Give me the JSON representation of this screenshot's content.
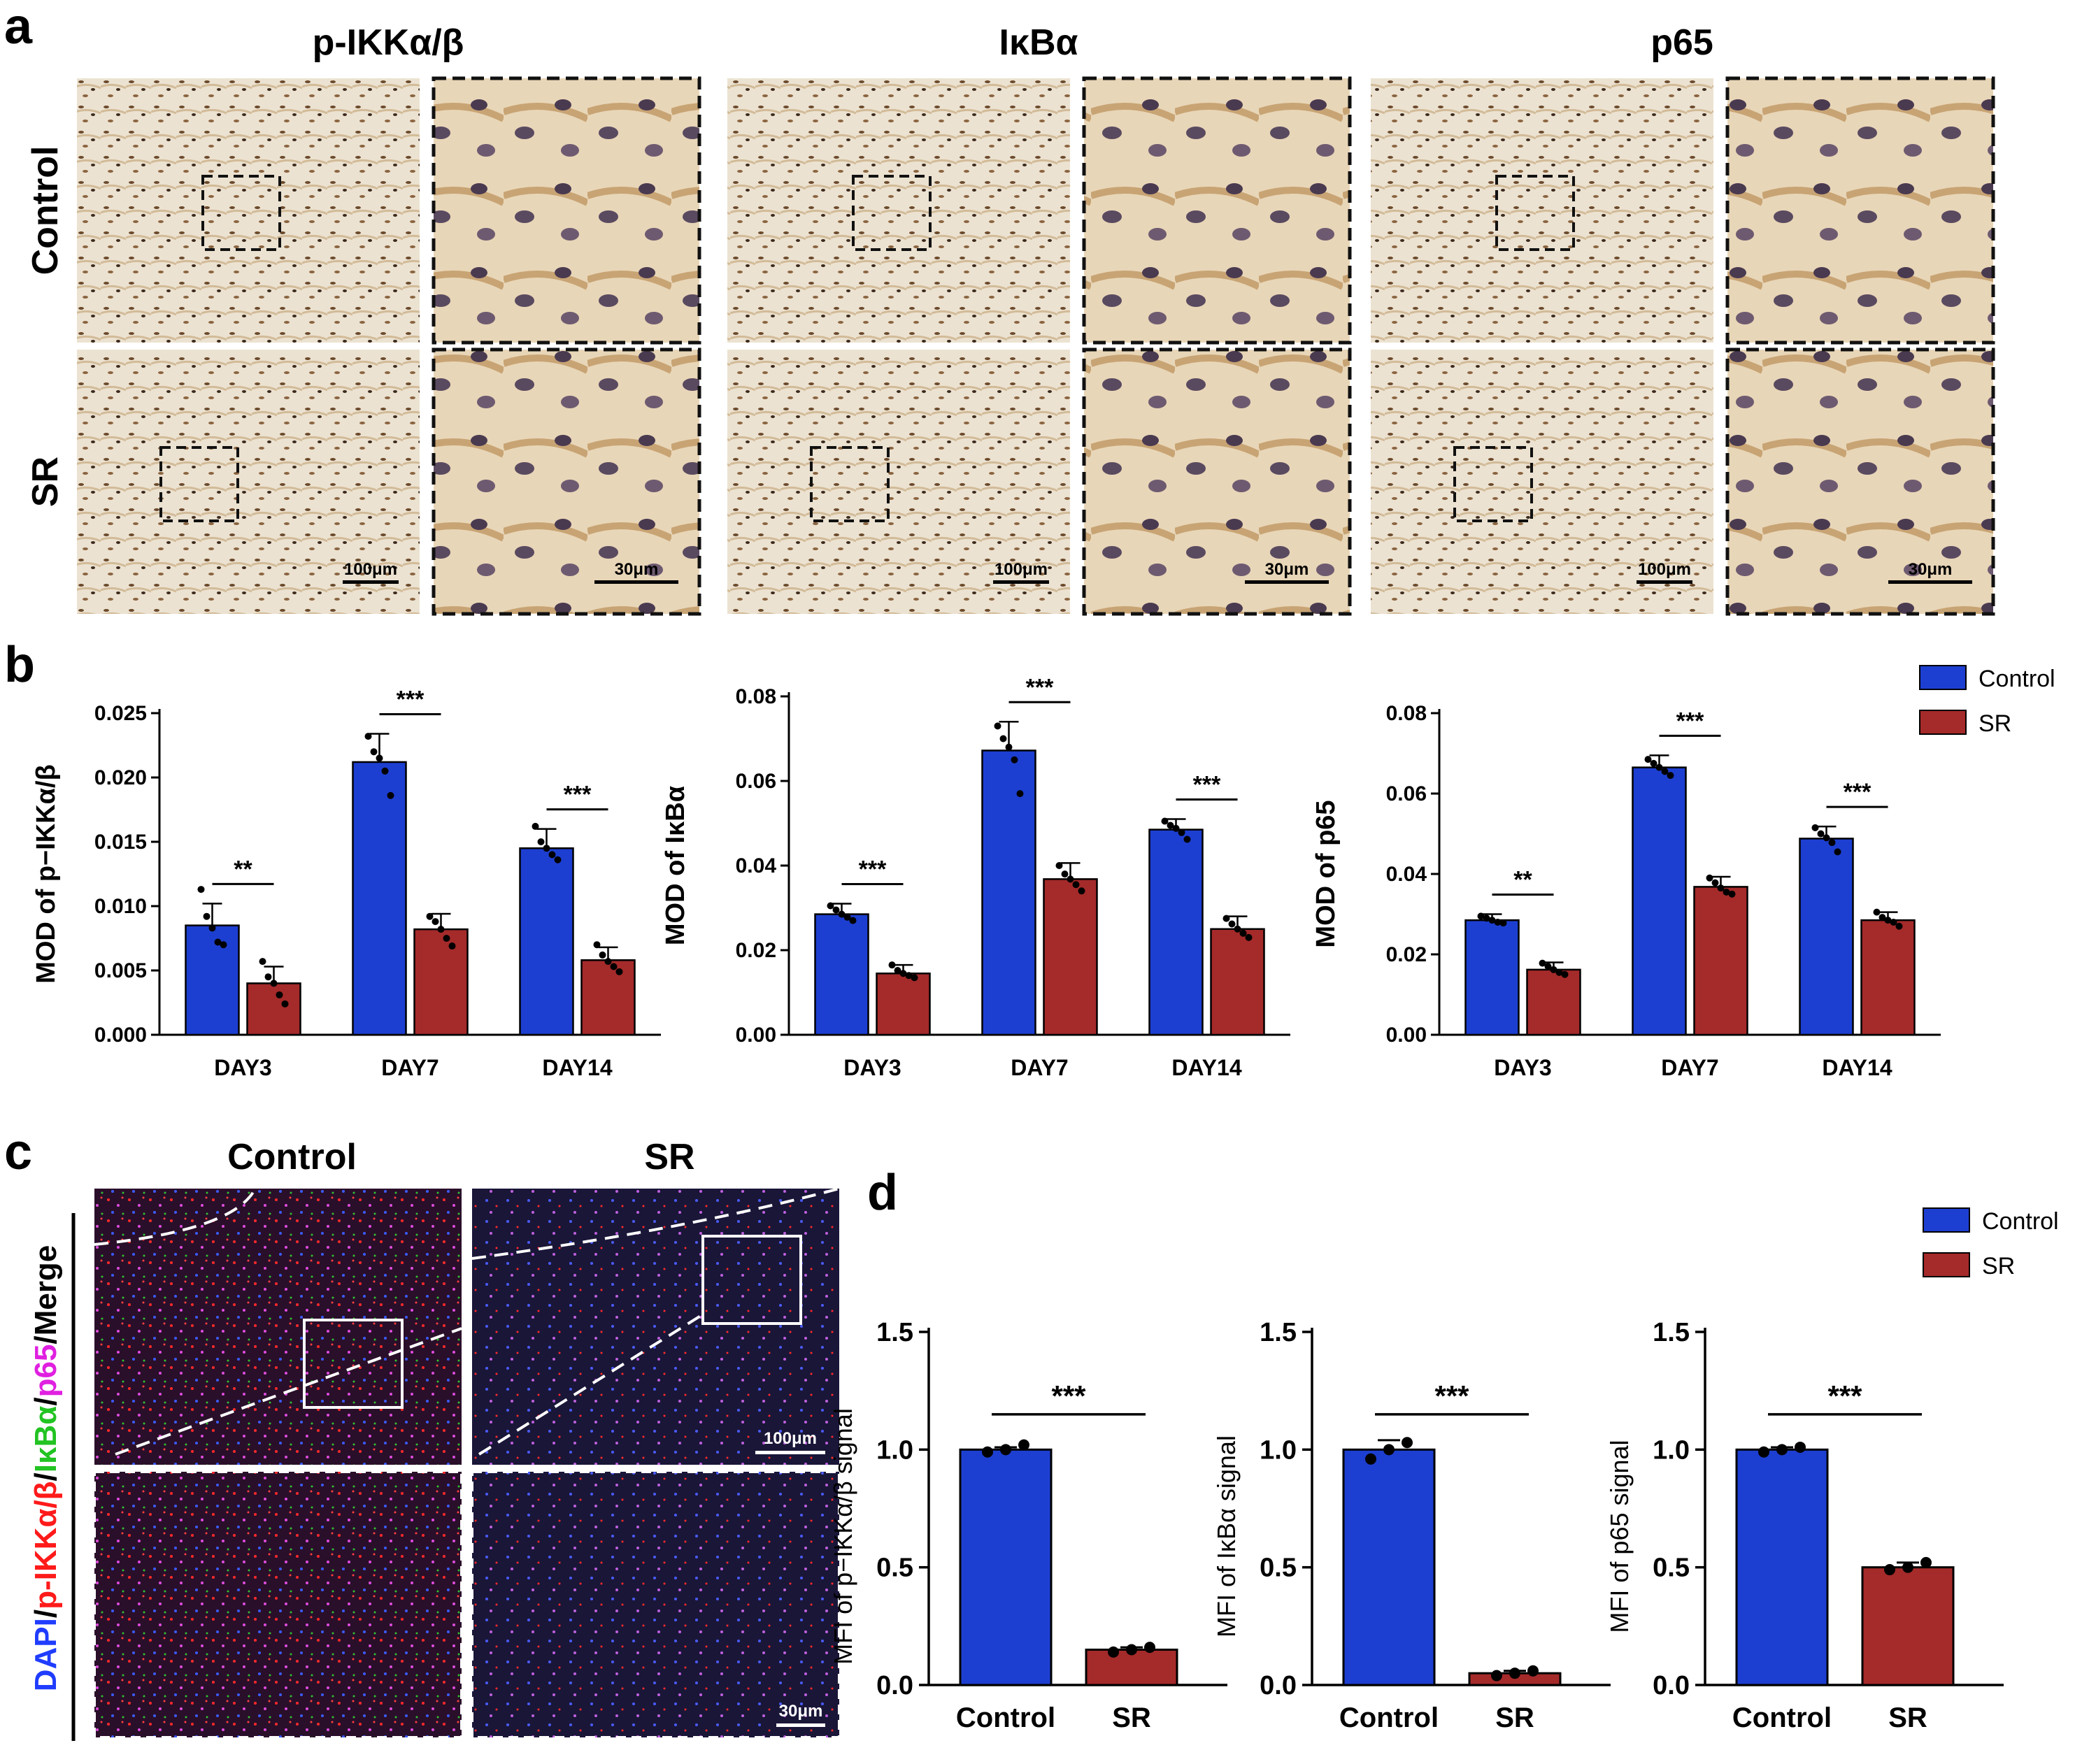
{
  "panel_a": {
    "letter": "a",
    "columns": [
      "p-IKKα/β",
      "IκBα",
      "p65"
    ],
    "rows": [
      "Control",
      "SR"
    ],
    "scale_low": "100μm",
    "scale_high": "30μm"
  },
  "panel_b_letter": "b",
  "panel_c": {
    "letter": "c",
    "cols": [
      "Control",
      "SR"
    ],
    "side_label_parts": [
      {
        "text": "DAPI",
        "color": "#1f3cff"
      },
      {
        "text": "/",
        "color": "#000000"
      },
      {
        "text": "p-IKKα/β",
        "color": "#ff1a1a"
      },
      {
        "text": "/",
        "color": "#000000"
      },
      {
        "text": "IκBα",
        "color": "#22c322"
      },
      {
        "text": "/",
        "color": "#000000"
      },
      {
        "text": "p65",
        "color": "#e020e0"
      },
      {
        "text": "/Merge",
        "color": "#000000"
      }
    ],
    "scale_low": "100μm",
    "scale_high": "30μm"
  },
  "panel_d_letter": "d",
  "legend": {
    "labels": [
      "Control",
      "SR"
    ],
    "colors": [
      "#1d3fd1",
      "#a52a2a"
    ]
  },
  "chart_data": [
    {
      "type": "bar",
      "panel": "b",
      "categories": [
        "DAY3",
        "DAY7",
        "DAY14"
      ],
      "series": [
        {
          "name": "Control",
          "values": [
            0.0085,
            0.0212,
            0.0145
          ],
          "err": [
            0.0017,
            0.0022,
            0.0015
          ]
        },
        {
          "name": "SR",
          "values": [
            0.004,
            0.0082,
            0.0058
          ],
          "err": [
            0.0013,
            0.0012,
            0.001
          ]
        }
      ],
      "points": [
        [
          [
            0.0113,
            0.0092,
            0.0083,
            0.0072,
            0.007
          ],
          [
            0.0057,
            0.0045,
            0.004,
            0.0031,
            0.0024
          ]
        ],
        [
          [
            0.0232,
            0.022,
            0.0215,
            0.0205,
            0.0186
          ],
          [
            0.0092,
            0.0088,
            0.0082,
            0.0075,
            0.0069
          ]
        ],
        [
          [
            0.0162,
            0.015,
            0.0145,
            0.014,
            0.0136
          ],
          [
            0.007,
            0.0062,
            0.0057,
            0.0053,
            0.0049
          ]
        ]
      ],
      "significance": [
        "**",
        "***",
        "***"
      ],
      "ylabel": "MOD of p−IKKα/β",
      "ylim": [
        0,
        0.025
      ],
      "yticks": [
        "0.000",
        "0.005",
        "0.010",
        "0.015",
        "0.020",
        "0.025"
      ]
    },
    {
      "type": "bar",
      "panel": "b",
      "categories": [
        "DAY3",
        "DAY7",
        "DAY14"
      ],
      "series": [
        {
          "name": "Control",
          "values": [
            0.0285,
            0.0672,
            0.0485
          ],
          "err": [
            0.0025,
            0.0068,
            0.0025
          ]
        },
        {
          "name": "SR",
          "values": [
            0.0145,
            0.0368,
            0.025
          ],
          "err": [
            0.002,
            0.0038,
            0.003
          ]
        }
      ],
      "points": [
        [
          [
            0.0305,
            0.0295,
            0.0285,
            0.0278,
            0.027
          ],
          [
            0.0165,
            0.0152,
            0.0145,
            0.014,
            0.0135
          ]
        ],
        [
          [
            0.073,
            0.07,
            0.068,
            0.065,
            0.057
          ],
          [
            0.04,
            0.038,
            0.0368,
            0.0355,
            0.034
          ]
        ],
        [
          [
            0.0505,
            0.0495,
            0.0488,
            0.0478,
            0.0462
          ],
          [
            0.0275,
            0.0262,
            0.025,
            0.024,
            0.023
          ]
        ]
      ],
      "significance": [
        "***",
        "***",
        "***"
      ],
      "ylabel": "MOD of IκBα",
      "ylim": [
        0,
        0.08
      ],
      "yticks": [
        "0.00",
        "0.02",
        "0.04",
        "0.06",
        "0.08"
      ]
    },
    {
      "type": "bar",
      "panel": "b",
      "categories": [
        "DAY3",
        "DAY7",
        "DAY14"
      ],
      "series": [
        {
          "name": "Control",
          "values": [
            0.0285,
            0.0665,
            0.0488
          ],
          "err": [
            0.0015,
            0.003,
            0.003
          ]
        },
        {
          "name": "SR",
          "values": [
            0.0162,
            0.0368,
            0.0285
          ],
          "err": [
            0.0018,
            0.0025,
            0.002
          ]
        }
      ],
      "points": [
        [
          [
            0.0295,
            0.029,
            0.0285,
            0.028,
            0.0278
          ],
          [
            0.0178,
            0.017,
            0.0162,
            0.0155,
            0.015
          ]
        ],
        [
          [
            0.0685,
            0.0675,
            0.0665,
            0.0655,
            0.0645
          ],
          [
            0.039,
            0.0378,
            0.0365,
            0.0355,
            0.035
          ]
        ],
        [
          [
            0.0515,
            0.05,
            0.049,
            0.0478,
            0.0455
          ],
          [
            0.0305,
            0.0292,
            0.0285,
            0.028,
            0.027
          ]
        ]
      ],
      "significance": [
        "**",
        "***",
        "***"
      ],
      "ylabel": "MOD of p65",
      "ylim": [
        0,
        0.08
      ],
      "yticks": [
        "0.00",
        "0.02",
        "0.04",
        "0.06",
        "0.08"
      ]
    },
    {
      "type": "bar",
      "panel": "d",
      "categories": [
        "Control",
        "SR"
      ],
      "values": [
        1.0,
        0.15
      ],
      "err": [
        0.01,
        0.01
      ],
      "points": [
        [
          0.99,
          1.0,
          1.02
        ],
        [
          0.14,
          0.15,
          0.16
        ]
      ],
      "significance": "***",
      "ylabel": "MFI of p−IKKα/β signal",
      "ylim": [
        0,
        1.5
      ],
      "yticks": [
        "0.0",
        "0.5",
        "1.0",
        "1.5"
      ]
    },
    {
      "type": "bar",
      "panel": "d",
      "categories": [
        "Control",
        "SR"
      ],
      "values": [
        1.0,
        0.05
      ],
      "err": [
        0.04,
        0.01
      ],
      "points": [
        [
          0.96,
          1.0,
          1.03
        ],
        [
          0.04,
          0.05,
          0.06
        ]
      ],
      "significance": "***",
      "ylabel": "MFI of IκBα signal",
      "ylim": [
        0,
        1.5
      ],
      "yticks": [
        "0.0",
        "0.5",
        "1.0",
        "1.5"
      ]
    },
    {
      "type": "bar",
      "panel": "d",
      "categories": [
        "Control",
        "SR"
      ],
      "values": [
        1.0,
        0.5
      ],
      "err": [
        0.01,
        0.02
      ],
      "points": [
        [
          0.99,
          1.0,
          1.01
        ],
        [
          0.49,
          0.5,
          0.52
        ]
      ],
      "significance": "***",
      "ylabel": "MFI of p65 signal",
      "ylim": [
        0,
        1.5
      ],
      "yticks": [
        "0.0",
        "0.5",
        "1.0",
        "1.5"
      ]
    }
  ]
}
